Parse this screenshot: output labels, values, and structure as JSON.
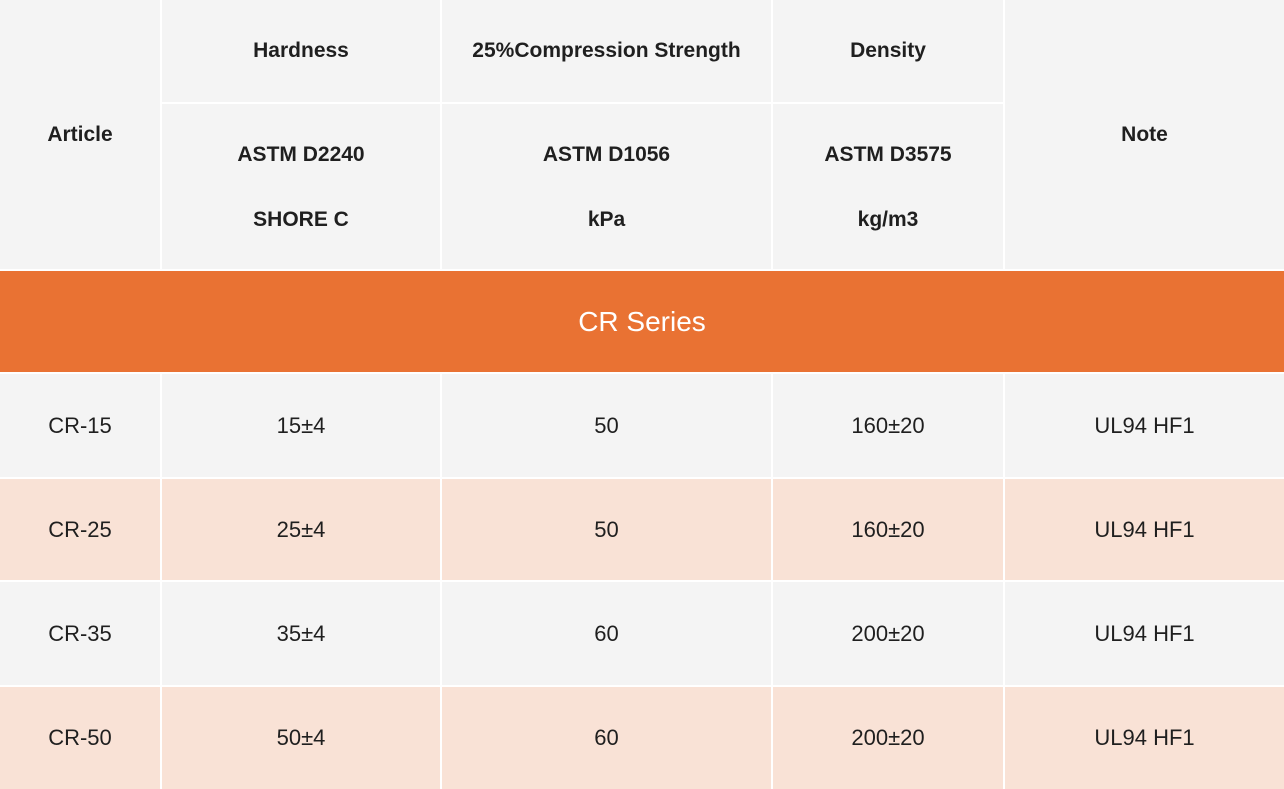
{
  "header": {
    "article": "Article",
    "note": "Note",
    "columns": [
      {
        "name": "Hardness",
        "standard": "ASTM D2240",
        "unit": "SHORE C"
      },
      {
        "name": "25%Compression Strength",
        "standard": "ASTM D1056",
        "unit": "kPa"
      },
      {
        "name": "Density",
        "standard": "ASTM D3575",
        "unit": "kg/m3"
      }
    ]
  },
  "series_label": "CR Series",
  "rows": [
    {
      "article": "CR-15",
      "hardness": "15±4",
      "compression": "50",
      "density": "160±20",
      "note": "UL94 HF1"
    },
    {
      "article": "CR-25",
      "hardness": "25±4",
      "compression": "50",
      "density": "160±20",
      "note": "UL94 HF1"
    },
    {
      "article": "CR-35",
      "hardness": "35±4",
      "compression": "60",
      "density": "200±20",
      "note": "UL94 HF1"
    },
    {
      "article": "CR-50",
      "hardness": "50±4",
      "compression": "60",
      "density": "200±20",
      "note": "UL94 HF1"
    }
  ],
  "colors": {
    "header_bg": "#f4f4f4",
    "series_bg": "#e97233",
    "row_light": "#f4f4f4",
    "row_tint": "#f9e2d6"
  }
}
